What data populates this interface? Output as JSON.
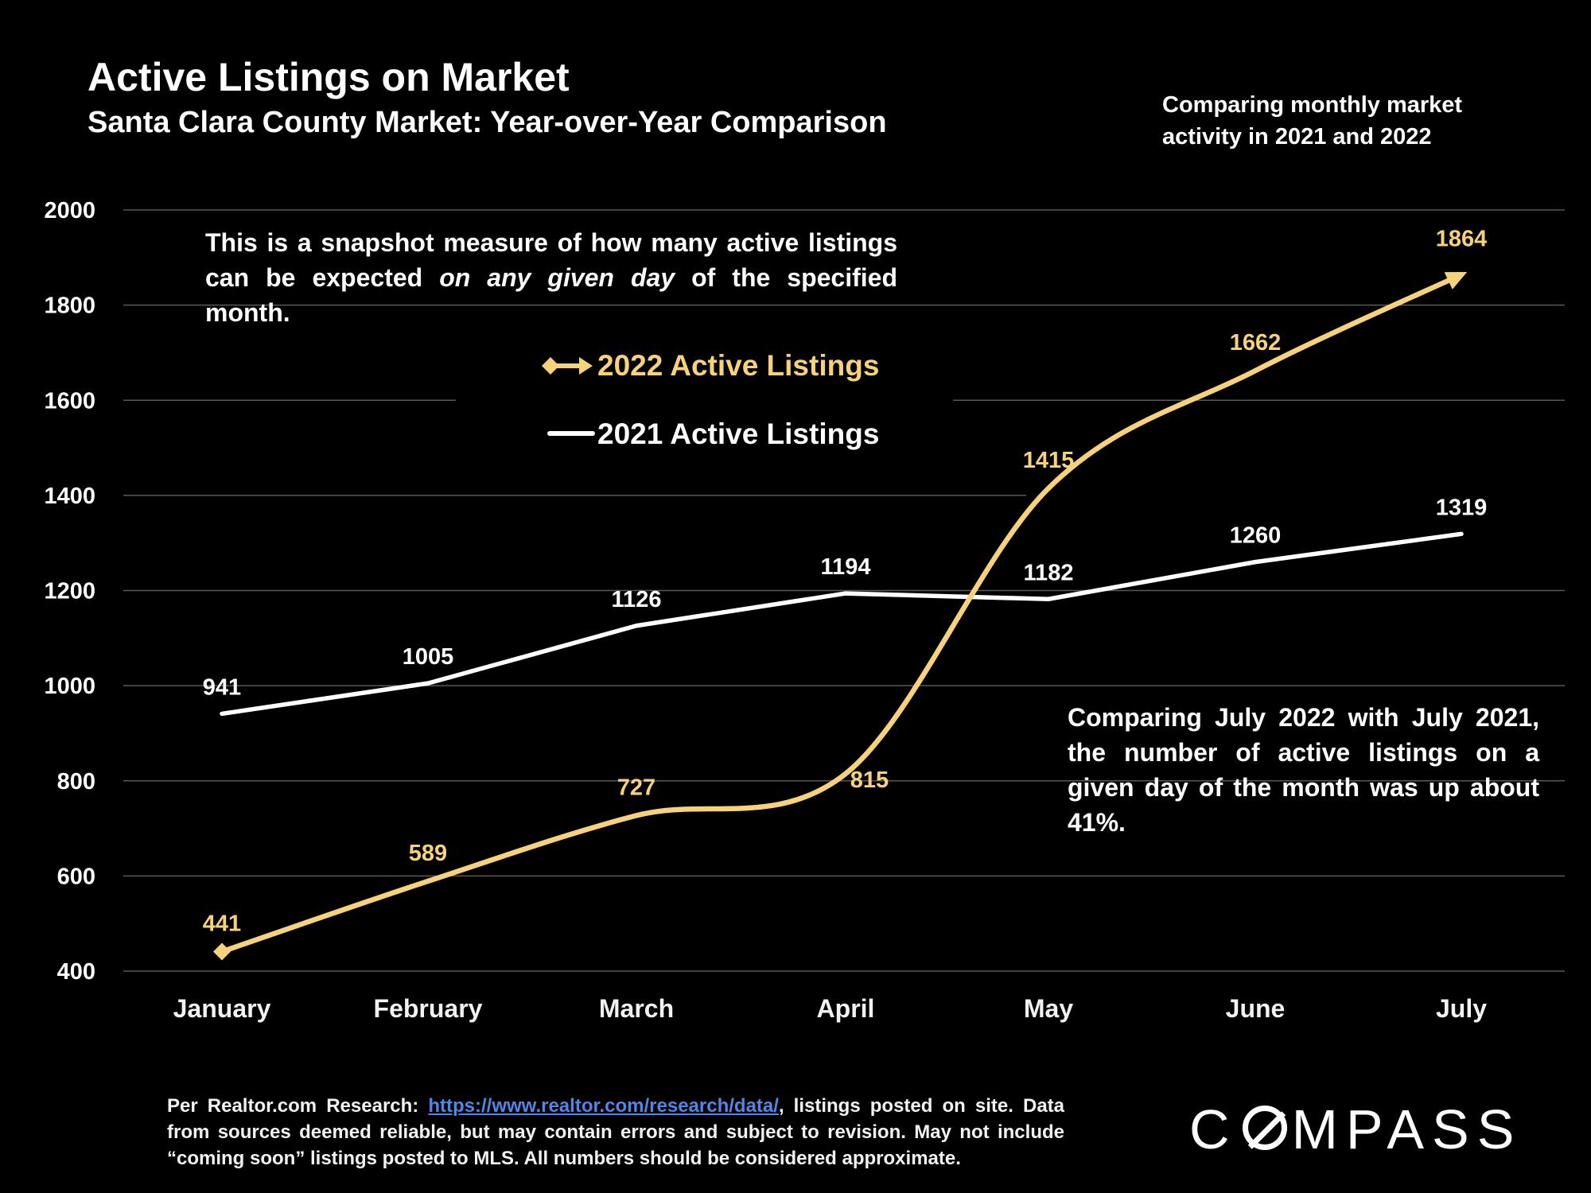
{
  "title": "Active Listings on Market",
  "subtitle": "Santa Clara County Market: Year-over-Year Comparison",
  "side_note": "Comparing monthly market activity in 2021 and 2022",
  "note_top": {
    "before": "This is a snapshot measure of how many active listings can be expected ",
    "emphasis": "on any given day",
    "after": " of the specified month."
  },
  "note_right": "Comparing July 2022 with July 2021, the number of active listings on a given day of the month was up about 41%.",
  "footer": {
    "prefix": "Per Realtor.com Research: ",
    "link": "https://www.realtor.com/research/data/",
    "suffix": ", listings posted on site. Data from sources deemed reliable, but may contain errors and subject to revision. May not include “coming soon” listings posted to MLS. All numbers should be considered approximate."
  },
  "logo": {
    "before": "C",
    "after": "MPASS"
  },
  "chart_data": {
    "type": "line",
    "categories": [
      "January",
      "February",
      "March",
      "April",
      "May",
      "June",
      "July"
    ],
    "ylim": [
      400,
      2000
    ],
    "yticks": [
      400,
      600,
      800,
      1000,
      1200,
      1400,
      1600,
      1800,
      2000
    ],
    "grid": true,
    "legend_position": "top-center",
    "series": [
      {
        "name": "2022 Active Listings",
        "values": [
          441,
          589,
          727,
          815,
          1415,
          1662,
          1864
        ],
        "color": "#f7d27a"
      },
      {
        "name": "2021 Active Listings",
        "values": [
          941,
          1005,
          1126,
          1194,
          1182,
          1260,
          1319
        ],
        "color": "#ffffff"
      }
    ]
  }
}
